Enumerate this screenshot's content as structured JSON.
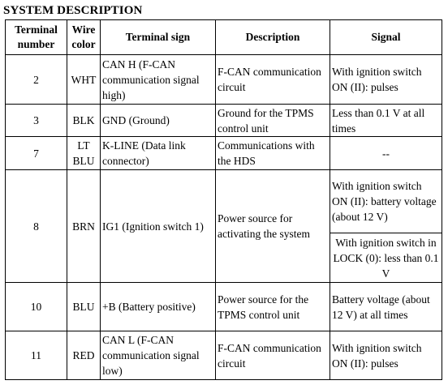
{
  "heading": "SYSTEM DESCRIPTION",
  "columns": {
    "terminal_number": "Terminal\nnumber",
    "wire_color": "Wire\ncolor",
    "terminal_sign": "Terminal sign",
    "description": "Description",
    "signal": "Signal"
  },
  "rows": [
    {
      "number": "2",
      "wire": "WHT",
      "sign": "CAN H (F-CAN communication signal high)",
      "description": "F-CAN communication circuit",
      "signal": "With ignition switch ON (II): pulses"
    },
    {
      "number": "3",
      "wire": "BLK",
      "sign": "GND (Ground)",
      "description": "Ground for the TPMS control unit",
      "signal": "Less than 0.1 V at all times"
    },
    {
      "number": "7",
      "wire": "LT\nBLU",
      "sign": "K-LINE (Data link connector)",
      "description": "Communications with the HDS",
      "signal": "--"
    },
    {
      "number": "8",
      "wire": "BRN",
      "sign": "IG1 (Ignition switch 1)",
      "description": "Power source for activating the system",
      "signal": "With ignition switch ON (II): battery voltage (about 12 V)",
      "signal_2": "With ignition switch in LOCK (0): less than 0.1 V"
    },
    {
      "number": "10",
      "wire": "BLU",
      "sign": "+B (Battery positive)",
      "description": "Power source for the TPMS control unit",
      "signal": "Battery voltage (about 12 V) at all times"
    },
    {
      "number": "11",
      "wire": "RED",
      "sign": "CAN L (F-CAN communication signal low)",
      "description": "F-CAN communication circuit",
      "signal": "With ignition switch ON (II): pulses"
    }
  ]
}
